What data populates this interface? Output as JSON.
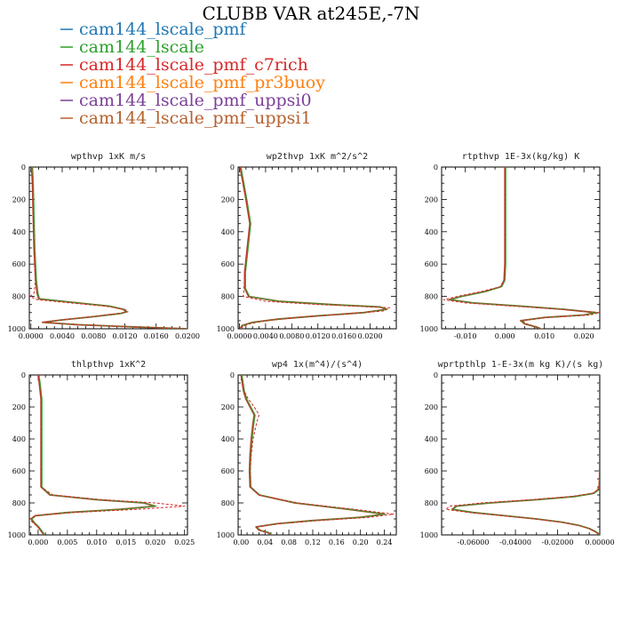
{
  "title": "CLUBB VAR at245E,-7N",
  "legend": [
    {
      "label": "cam144_lscale_pmf",
      "color": "#1f77b4"
    },
    {
      "label": "cam144_lscale",
      "color": "#2ca02c"
    },
    {
      "label": "cam144_lscale_pmf_c7rich",
      "color": "#d62728"
    },
    {
      "label": "cam144_lscale_pmf_pr3buoy",
      "color": "#ff7f0e"
    },
    {
      "label": "cam144_lscale_pmf_uppsi0",
      "color": "#7b3f99"
    },
    {
      "label": "cam144_lscale_pmf_uppsi1",
      "color": "#b5602e"
    }
  ],
  "chart_data": [
    {
      "type": "line",
      "title": "wpthvp  1xK m/s",
      "xlim": [
        -0.0002,
        0.02
      ],
      "ylim": [
        1000,
        0
      ],
      "x_ticks": [
        "0.0000",
        "0.0040",
        "0.0080",
        "0.0120",
        "0.0160",
        "0.0200"
      ],
      "y_ticks": [
        "0",
        "200",
        "400",
        "600",
        "800",
        "1000"
      ],
      "series": [
        {
          "y": [
            0,
            100,
            300,
            500,
            700,
            780,
            815,
            840,
            860,
            880,
            895,
            905,
            925,
            945,
            960,
            975,
            990,
            1000
          ],
          "x": [
            0.0001,
            0.0002,
            0.0003,
            0.0004,
            0.0006,
            0.0008,
            0.001,
            0.006,
            0.01,
            0.0118,
            0.0122,
            0.0115,
            0.008,
            0.004,
            0.0015,
            0.006,
            0.014,
            0.02
          ]
        },
        {
          "y": [
            0,
            100,
            300,
            500,
            700,
            780,
            800,
            820,
            840,
            860,
            880,
            895,
            905,
            925,
            945,
            960,
            975,
            990,
            1000
          ],
          "x": [
            0.0001,
            0.0002,
            0.0003,
            0.0004,
            0.0006,
            0.0004,
            -0.0001,
            0.0008,
            0.005,
            0.0095,
            0.012,
            0.0124,
            0.0112,
            0.0078,
            0.004,
            0.0015,
            0.006,
            0.014,
            0.02
          ]
        }
      ]
    },
    {
      "type": "line",
      "title": "wp2thvp  1xK m^2/s^2",
      "xlim": [
        -0.0002,
        0.024
      ],
      "ylim": [
        1000,
        0
      ],
      "x_ticks": [
        "0.0000",
        "0.0040",
        "0.0080",
        "0.0120",
        "0.0160",
        "0.0200"
      ],
      "y_ticks": [
        "0",
        "200",
        "400",
        "600",
        "800",
        "1000"
      ],
      "series": [
        {
          "y": [
            0,
            200,
            300,
            350,
            500,
            650,
            750,
            800,
            830,
            850,
            865,
            880,
            900,
            920,
            940,
            960,
            980,
            1000
          ],
          "x": [
            0.0001,
            0.001,
            0.0014,
            0.0016,
            0.0012,
            0.0008,
            0.0008,
            0.0014,
            0.006,
            0.014,
            0.0215,
            0.0225,
            0.019,
            0.012,
            0.006,
            0.002,
            0.0004,
            0.0001
          ]
        },
        {
          "y": [
            0,
            200,
            300,
            350,
            500,
            650,
            750,
            800,
            830,
            850,
            870,
            890,
            910,
            930,
            950,
            970,
            990,
            1000
          ],
          "x": [
            0.0001,
            0.001,
            0.0014,
            0.0016,
            0.0012,
            0.0008,
            0.0007,
            0.0006,
            0.004,
            0.012,
            0.023,
            0.022,
            0.016,
            0.009,
            0.004,
            0.0015,
            0.0004,
            0.0001
          ]
        }
      ]
    },
    {
      "type": "line",
      "title": "rtpthvp  1E-3x(kg/kg) K",
      "xlim": [
        -0.016,
        0.024
      ],
      "ylim": [
        1000,
        0
      ],
      "x_ticks": [
        "-0.010",
        "0.000",
        "0.010",
        "0.020"
      ],
      "y_ticks": [
        "0",
        "200",
        "400",
        "600",
        "800",
        "1000"
      ],
      "series": [
        {
          "y": [
            0,
            200,
            400,
            600,
            700,
            740,
            770,
            800,
            820,
            840,
            860,
            880,
            900,
            915,
            930,
            950,
            970,
            990,
            1000
          ],
          "x": [
            0.0,
            0.0,
            0.0,
            0.0,
            -0.0002,
            -0.001,
            -0.005,
            -0.011,
            -0.014,
            -0.008,
            0.004,
            0.015,
            0.023,
            0.02,
            0.01,
            0.004,
            0.005,
            0.008,
            0.009
          ]
        },
        {
          "y": [
            0,
            200,
            400,
            600,
            700,
            740,
            770,
            800,
            820,
            840,
            860,
            880,
            900,
            915,
            930,
            950,
            970,
            990,
            1000
          ],
          "x": [
            0.0,
            0.0,
            0.0,
            0.0,
            -0.0002,
            -0.0012,
            -0.006,
            -0.012,
            -0.0155,
            -0.01,
            0.002,
            0.014,
            0.024,
            0.0215,
            0.011,
            0.0045,
            0.0055,
            0.0085,
            0.009
          ]
        }
      ]
    },
    {
      "type": "line",
      "title": "thlpthvp  1xK^2",
      "xlim": [
        -0.0015,
        0.0255
      ],
      "ylim": [
        1000,
        0
      ],
      "x_ticks": [
        "0.000",
        "0.005",
        "0.010",
        "0.015",
        "0.020",
        "0.025"
      ],
      "y_ticks": [
        "0",
        "200",
        "400",
        "600",
        "800",
        "1000"
      ],
      "series": [
        {
          "y": [
            0,
            50,
            150,
            300,
            500,
            700,
            750,
            780,
            800,
            820,
            840,
            860,
            880,
            900,
            920,
            950,
            980,
            1000
          ],
          "x": [
            0.0,
            0.0002,
            0.0005,
            0.0005,
            0.0005,
            0.0005,
            0.002,
            0.01,
            0.018,
            0.02,
            0.014,
            0.005,
            -0.0005,
            -0.0012,
            -0.0008,
            0.0,
            0.0006,
            0.001
          ]
        },
        {
          "y": [
            0,
            50,
            150,
            300,
            500,
            700,
            750,
            780,
            800,
            820,
            840,
            860,
            880,
            900,
            920,
            950,
            980,
            1000
          ],
          "x": [
            0.0,
            0.0002,
            0.0005,
            0.0005,
            0.0005,
            0.0005,
            0.0025,
            0.011,
            0.02,
            0.025,
            0.017,
            0.006,
            -0.0002,
            -0.0015,
            -0.001,
            0.0,
            0.0006,
            0.001
          ]
        }
      ]
    },
    {
      "type": "line",
      "title": "wp4  1x(m^4)/(s^4)",
      "xlim": [
        -0.005,
        0.26
      ],
      "ylim": [
        1000,
        0
      ],
      "x_ticks": [
        "0.00",
        "0.04",
        "0.08",
        "0.12",
        "0.16",
        "0.20",
        "0.24"
      ],
      "y_ticks": [
        "0",
        "200",
        "400",
        "600",
        "800",
        "1000"
      ],
      "series": [
        {
          "y": [
            0,
            100,
            150,
            200,
            250,
            300,
            400,
            500,
            600,
            700,
            750,
            800,
            840,
            870,
            890,
            910,
            930,
            950,
            970,
            985,
            1000
          ],
          "x": [
            0.0,
            0.004,
            0.008,
            0.015,
            0.022,
            0.02,
            0.017,
            0.015,
            0.014,
            0.015,
            0.03,
            0.09,
            0.18,
            0.24,
            0.2,
            0.12,
            0.06,
            0.025,
            0.03,
            0.045,
            0.05
          ]
        },
        {
          "y": [
            0,
            100,
            150,
            200,
            250,
            300,
            400,
            500,
            600,
            700,
            750,
            800,
            840,
            870,
            890,
            910,
            930,
            950,
            970,
            985,
            1000
          ],
          "x": [
            0.0,
            0.005,
            0.012,
            0.022,
            0.03,
            0.026,
            0.02,
            0.017,
            0.015,
            0.016,
            0.03,
            0.095,
            0.19,
            0.255,
            0.215,
            0.13,
            0.065,
            0.027,
            0.032,
            0.046,
            0.05
          ]
        }
      ]
    },
    {
      "type": "line",
      "title": "wprtpthlp  1-E-3x(m kg K)/(s kg)",
      "xlim": [
        -0.075,
        0.0
      ],
      "ylim": [
        1000,
        0
      ],
      "x_ticks": [
        "-0.06000",
        "-0.04000",
        "-0.02000",
        "0.00000"
      ],
      "y_ticks": [
        "0",
        "200",
        "400",
        "600",
        "800",
        "1000"
      ],
      "series": [
        {
          "y": [
            0,
            200,
            400,
            600,
            700,
            720,
            740,
            760,
            780,
            800,
            820,
            840,
            860,
            880,
            900,
            920,
            940,
            960,
            980,
            1000
          ],
          "x": [
            0.0,
            0.0,
            0.0,
            0.0,
            -0.0003,
            -0.001,
            -0.003,
            -0.012,
            -0.03,
            -0.052,
            -0.068,
            -0.07,
            -0.06,
            -0.045,
            -0.03,
            -0.018,
            -0.01,
            -0.005,
            -0.002,
            0.0
          ]
        },
        {
          "y": [
            0,
            200,
            400,
            600,
            700,
            720,
            740,
            760,
            780,
            800,
            820,
            840,
            860,
            880,
            900,
            920,
            940,
            960,
            980,
            1000
          ],
          "x": [
            0.0,
            0.0,
            0.0,
            0.0,
            -0.0003,
            -0.0012,
            -0.0035,
            -0.014,
            -0.033,
            -0.056,
            -0.071,
            -0.073,
            -0.062,
            -0.046,
            -0.031,
            -0.0185,
            -0.01,
            -0.005,
            -0.002,
            0.0
          ]
        }
      ]
    }
  ]
}
